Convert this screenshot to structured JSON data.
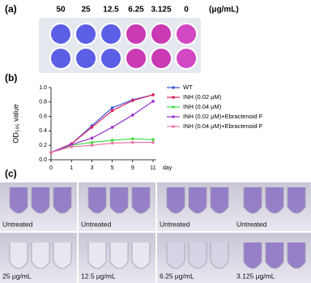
{
  "panel_a": {
    "label": "(a)",
    "concentrations": [
      "50",
      "25",
      "12.5",
      "6.25",
      "3.125",
      "0"
    ],
    "unit": "(μg/mL)"
  },
  "chart_data": {
    "type": "line",
    "panel_label": "(b)",
    "xlabel": "day",
    "ylabel": "OD₅₉₅ value",
    "categories": [
      "0",
      "1",
      "3",
      "5",
      "9",
      "11"
    ],
    "ylim": [
      0,
      1.0
    ],
    "yticks": [
      {
        "value": 0,
        "label": "0.0"
      },
      {
        "value": 0.2,
        "label": "0.2"
      },
      {
        "value": 0.4,
        "label": "0.4"
      },
      {
        "value": 0.6,
        "label": "0.6"
      },
      {
        "value": 0.8,
        "label": "0.8"
      },
      {
        "value": 1.0,
        "label": "1.0"
      }
    ],
    "series": [
      {
        "name": "WT",
        "color": "#3a55e0",
        "values": [
          0.1,
          0.22,
          0.47,
          0.72,
          0.83,
          0.9
        ]
      },
      {
        "name": "INH (0.02 μM)",
        "color": "#e0205a",
        "values": [
          0.1,
          0.22,
          0.45,
          0.68,
          0.82,
          0.9
        ]
      },
      {
        "name": "INH (0.04 μM)",
        "color": "#44dd44",
        "values": [
          0.1,
          0.2,
          0.24,
          0.27,
          0.29,
          0.28
        ]
      },
      {
        "name": "INH (0.02 μM)+Ebractenoid F",
        "color": "#9933cc",
        "values": [
          0.1,
          0.21,
          0.3,
          0.45,
          0.62,
          0.81
        ]
      },
      {
        "name": "INH (0.04 μM)+Ebractenoid F",
        "color": "#ee77aa",
        "values": [
          0.1,
          0.18,
          0.2,
          0.23,
          0.24,
          0.24
        ]
      }
    ]
  },
  "panel_c": {
    "label": "(c)",
    "top": [
      "Untreated",
      "Untreated",
      "Untreated",
      "Untreated"
    ],
    "bottom": [
      "25 μg/mL",
      "12.5 μg/mL",
      "6.25 μg/mL",
      "3.125 μg/mL"
    ]
  }
}
